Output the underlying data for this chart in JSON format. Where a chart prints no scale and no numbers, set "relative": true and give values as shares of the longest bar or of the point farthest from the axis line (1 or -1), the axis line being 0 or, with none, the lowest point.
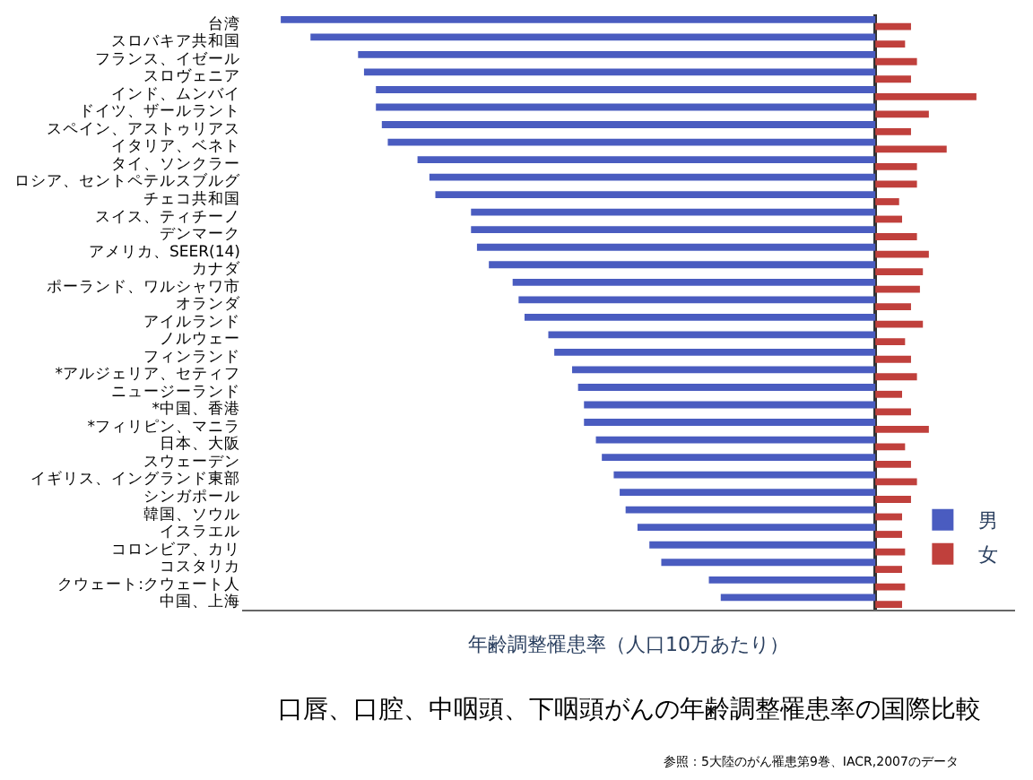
{
  "chart_data": {
    "type": "bar",
    "orientation": "horizontal",
    "relative": true,
    "title": "口唇、口腔、中咽頭、下咽頭がんの年齢調整罹患率の国際比較",
    "xlabel": "年齢調整罹患率（人口10万あたり）",
    "annotations": [
      "参照：5大陸のがん罹患第9巻、IACR,2007のデータ"
    ],
    "categories": [
      "台湾",
      "スロバキア共和国",
      "フランス、イゼール",
      "スロヴェニア",
      "インド、ムンバイ",
      "ドイツ、ザールラント",
      "スペイン、アストゥリアス",
      "イタリア、ベネト",
      "タイ、ソンクラー",
      "ロシア、セントペテルスブルグ",
      "チェコ共和国",
      "スイス、ティチーノ",
      "デンマーク",
      "アメリカ、SEER(14)",
      "カナダ",
      "ポーランド、ワルシャワ市",
      "オランダ",
      "アイルランド",
      "ノルウェー",
      "フィンランド",
      "*アルジェリア、セティフ",
      "ニュージーランド",
      "*中国、香港",
      "*フィリピン、マニラ",
      "日本、大阪",
      "スウェーデン",
      "イギリス、イングランド東部",
      "シンガポール",
      "韓国、ソウル",
      "イスラエル",
      "コロンビア、カリ",
      "コスタリカ",
      "クウェート:クウェート人",
      "中国、上海"
    ],
    "series": [
      {
        "name": "男",
        "color": "#4a5cc0",
        "values": [
          -1.0,
          -0.95,
          -0.87,
          -0.86,
          -0.84,
          -0.84,
          -0.83,
          -0.82,
          -0.77,
          -0.75,
          -0.74,
          -0.68,
          -0.68,
          -0.67,
          -0.65,
          -0.61,
          -0.6,
          -0.59,
          -0.55,
          -0.54,
          -0.51,
          -0.5,
          -0.49,
          -0.49,
          -0.47,
          -0.46,
          -0.44,
          -0.43,
          -0.42,
          -0.4,
          -0.38,
          -0.36,
          -0.28,
          -0.26
        ]
      },
      {
        "name": "女",
        "color": "#c0403c",
        "values": [
          0.06,
          0.05,
          0.07,
          0.06,
          0.17,
          0.09,
          0.06,
          0.12,
          0.07,
          0.07,
          0.04,
          0.045,
          0.07,
          0.09,
          0.08,
          0.075,
          0.06,
          0.08,
          0.05,
          0.06,
          0.07,
          0.045,
          0.06,
          0.09,
          0.05,
          0.06,
          0.07,
          0.06,
          0.045,
          0.045,
          0.05,
          0.045,
          0.05,
          0.045
        ]
      }
    ],
    "legend": "bottom right"
  }
}
